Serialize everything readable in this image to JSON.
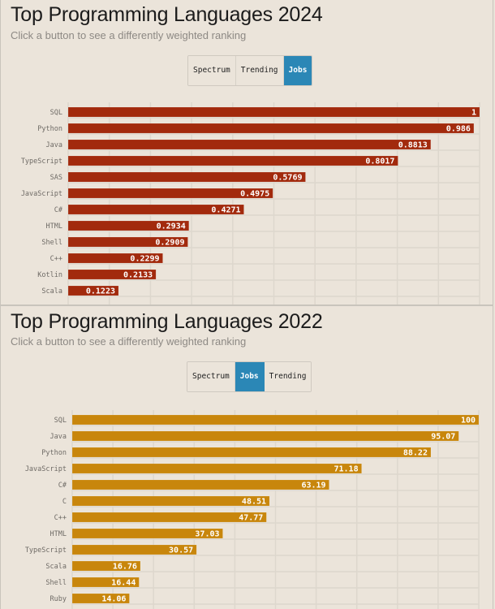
{
  "panels": [
    {
      "title": "Top Programming Languages 2024",
      "subtitle": "Click a button to see a differently weighted ranking",
      "buttons": [
        {
          "label": "Spectrum",
          "active": false
        },
        {
          "label": "Trending",
          "active": false
        },
        {
          "label": "Jobs",
          "active": true
        }
      ]
    },
    {
      "title": "Top Programming Languages 2022",
      "subtitle": "Click a button to see a differently weighted ranking",
      "buttons": [
        {
          "label": "Spectrum",
          "active": false
        },
        {
          "label": "Jobs",
          "active": true
        },
        {
          "label": "Trending",
          "active": false
        }
      ]
    }
  ],
  "colors": {
    "bar_2024": "#a22a0d",
    "bar_2022": "#c8860c",
    "active_button": "#2b87b6"
  },
  "chart_data": [
    {
      "type": "bar",
      "orientation": "horizontal",
      "title": "Top Programming Languages 2024",
      "ranking": "Jobs",
      "categories": [
        "SQL",
        "Python",
        "Java",
        "TypeScript",
        "SAS",
        "JavaScript",
        "C#",
        "HTML",
        "Shell",
        "C++",
        "Kotlin",
        "Scala"
      ],
      "values": [
        1,
        0.986,
        0.8813,
        0.8017,
        0.5769,
        0.4975,
        0.4271,
        0.2934,
        0.2909,
        0.2299,
        0.2133,
        0.1223
      ],
      "labels": [
        "1",
        "0.986",
        "0.8813",
        "0.8017",
        "0.5769",
        "0.4975",
        "0.4271",
        "0.2934",
        "0.2909",
        "0.2299",
        "0.2133",
        "0.1223"
      ],
      "xlim": [
        0,
        1
      ],
      "xlabel": "",
      "ylabel": "",
      "grid": true
    },
    {
      "type": "bar",
      "orientation": "horizontal",
      "title": "Top Programming Languages 2022",
      "ranking": "Jobs",
      "categories": [
        "SQL",
        "Java",
        "Python",
        "JavaScript",
        "C#",
        "C",
        "C++",
        "HTML",
        "TypeScript",
        "Scala",
        "Shell",
        "Ruby"
      ],
      "values": [
        100,
        95.07,
        88.22,
        71.18,
        63.19,
        48.51,
        47.77,
        37.03,
        30.57,
        16.76,
        16.44,
        14.06
      ],
      "labels": [
        "100",
        "95.07",
        "88.22",
        "71.18",
        "63.19",
        "48.51",
        "47.77",
        "37.03",
        "30.57",
        "16.76",
        "16.44",
        "14.06"
      ],
      "xlim": [
        0,
        100
      ],
      "xlabel": "",
      "ylabel": "",
      "grid": true
    }
  ]
}
